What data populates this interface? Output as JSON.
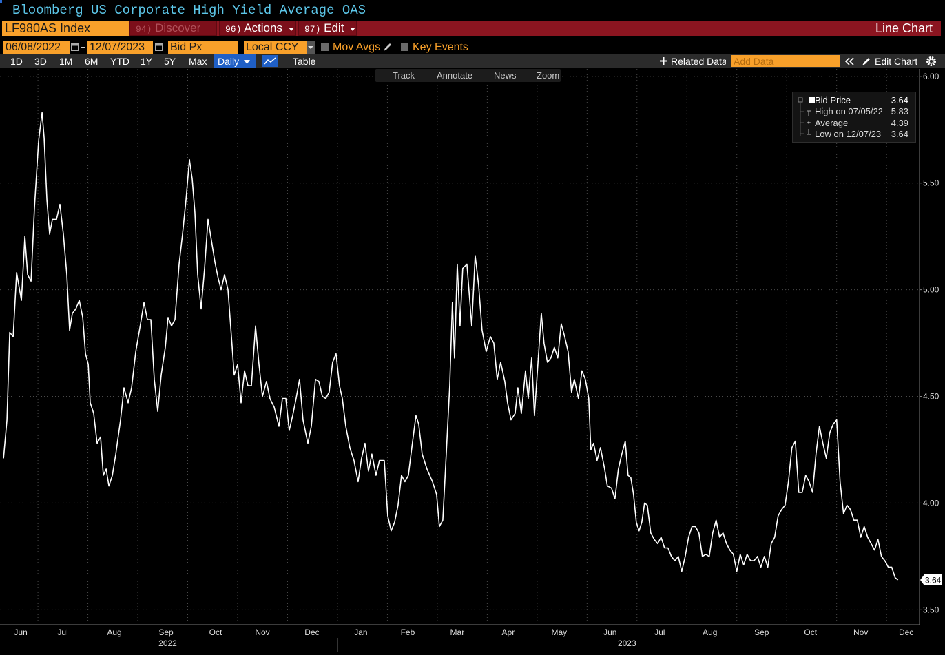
{
  "header": {
    "title": "Bloomberg US Corporate High Yield Average OAS",
    "ticker": "LF980AS Index",
    "menu": [
      {
        "key": "94)",
        "label": "Discover"
      },
      {
        "key": "96)",
        "label": "Actions"
      },
      {
        "key": "97)",
        "label": "Edit"
      }
    ],
    "view": "Line Chart"
  },
  "toolbar": {
    "start_date": "06/08/2022",
    "end_date": "12/07/2023",
    "field": "Bid Px",
    "currency": "Local CCY",
    "options": [
      "Mov Avgs",
      "Key Events"
    ],
    "ranges": [
      "1D",
      "3D",
      "1M",
      "6M",
      "YTD",
      "1Y",
      "5Y",
      "Max"
    ],
    "frequency": "Daily",
    "table": "Table",
    "related": "Related Data",
    "add_data": "Add Data",
    "edit_chart": "Edit Chart",
    "tools": [
      "Track",
      "Annotate",
      "News",
      "Zoom"
    ]
  },
  "chart_data": {
    "type": "line",
    "x": [
      0.31,
      0.379,
      0.434,
      0.503,
      0.572,
      0.669,
      0.738,
      0.793,
      0.862,
      0.931,
      1.014,
      1.083,
      1.124,
      1.179,
      1.234,
      1.29,
      1.372,
      1.441,
      1.51,
      1.579,
      1.634,
      1.69,
      1.759,
      1.828,
      1.897,
      1.952,
      2.007,
      2.048,
      2.117,
      2.186,
      2.255,
      2.31,
      2.366,
      2.421,
      2.49,
      2.559,
      2.655,
      2.724,
      2.807,
      2.876,
      2.959,
      3.055,
      3.124,
      3.193,
      3.262,
      3.331,
      3.4,
      3.469,
      3.552,
      3.607,
      3.676,
      3.745,
      3.828,
      3.897,
      3.966,
      4.034,
      4.09,
      4.145,
      4.2,
      4.269,
      4.338,
      4.407,
      4.476,
      4.545,
      4.614,
      4.669,
      4.738,
      4.807,
      4.876,
      4.931,
      5.0,
      5.069,
      5.138,
      5.207,
      5.276,
      5.359,
      5.428,
      5.497,
      5.579,
      5.648,
      5.731,
      5.828,
      5.897,
      5.966,
      6.034,
      6.103,
      6.172,
      6.241,
      6.31,
      6.407,
      6.476,
      6.559,
      6.628,
      6.697,
      6.766,
      6.834,
      6.903,
      6.972,
      7.041,
      7.097,
      7.166,
      7.248,
      7.331,
      7.414,
      7.483,
      7.552,
      7.621,
      7.69,
      7.772,
      7.841,
      7.938,
      8.007,
      8.076,
      8.145,
      8.214,
      8.283,
      8.352,
      8.421,
      8.49,
      8.572,
      8.628,
      8.697,
      8.793,
      8.903,
      8.986,
      9.041,
      9.11,
      9.179,
      9.248,
      9.303,
      9.345,
      9.4,
      9.455,
      9.51,
      9.593,
      9.69,
      9.759,
      9.828,
      9.897,
      9.979,
      10.062,
      10.131,
      10.2,
      10.269,
      10.352,
      10.407,
      10.476,
      10.559,
      10.614,
      10.683,
      10.766,
      10.821,
      10.89,
      10.945,
      11.014,
      11.083,
      11.138,
      11.207,
      11.276,
      11.345,
      11.414,
      11.483,
      11.552,
      11.621,
      11.69,
      11.745,
      11.828,
      11.897,
      11.966,
      12.034,
      12.076,
      12.131,
      12.2,
      12.269,
      12.352,
      12.407,
      12.49,
      12.559,
      12.628,
      12.697,
      12.766,
      12.821,
      12.876,
      12.931,
      12.986,
      13.041,
      13.097,
      13.152,
      13.207,
      13.276,
      13.345,
      13.414,
      13.483,
      13.552,
      13.621,
      13.69,
      13.759,
      13.828,
      13.897,
      13.966,
      14.034,
      14.103,
      14.172,
      14.241,
      14.31,
      14.379,
      14.448,
      14.517,
      14.586,
      14.655,
      14.724,
      14.793,
      14.862,
      14.931,
      15.0,
      15.069,
      15.138,
      15.207,
      15.276,
      15.345,
      15.414,
      15.483,
      15.552,
      15.621,
      15.69,
      15.759,
      15.828,
      15.897,
      15.966,
      16.034,
      16.103,
      16.172,
      16.241,
      16.31,
      16.379,
      16.448,
      16.517,
      16.586,
      16.655,
      16.724,
      16.793,
      16.862,
      16.931,
      17.0,
      17.069,
      17.138,
      17.207,
      17.276,
      17.345,
      17.414,
      17.483,
      17.552,
      17.621,
      17.69,
      17.759,
      17.828,
      17.897,
      17.966,
      18.034,
      18.103,
      18.172,
      18.228
    ],
    "series": [
      {
        "name": "Bid Price",
        "color": "#ffffff",
        "values": [
          4.21,
          4.39,
          4.8,
          4.78,
          5.08,
          4.95,
          5.25,
          5.07,
          5.04,
          5.39,
          5.7,
          5.83,
          5.71,
          5.42,
          5.26,
          5.33,
          5.33,
          5.4,
          5.26,
          5.07,
          4.81,
          4.89,
          4.91,
          4.95,
          4.87,
          4.7,
          4.65,
          4.47,
          4.42,
          4.28,
          4.31,
          4.13,
          4.16,
          4.08,
          4.13,
          4.23,
          4.39,
          4.54,
          4.47,
          4.54,
          4.71,
          4.84,
          4.94,
          4.86,
          4.86,
          4.58,
          4.43,
          4.6,
          4.73,
          4.87,
          4.83,
          4.86,
          5.12,
          5.26,
          5.42,
          5.61,
          5.52,
          5.36,
          5.07,
          4.91,
          5.1,
          5.33,
          5.23,
          5.13,
          5.05,
          5.0,
          5.07,
          5.0,
          4.78,
          4.6,
          4.65,
          4.47,
          4.62,
          4.55,
          4.55,
          4.83,
          4.65,
          4.5,
          4.57,
          4.49,
          4.45,
          4.36,
          4.49,
          4.49,
          4.34,
          4.41,
          4.49,
          4.58,
          4.39,
          4.28,
          4.36,
          4.58,
          4.57,
          4.5,
          4.49,
          4.52,
          4.66,
          4.7,
          4.55,
          4.49,
          4.36,
          4.26,
          4.2,
          4.1,
          4.21,
          4.28,
          4.15,
          4.23,
          4.13,
          4.2,
          4.2,
          3.94,
          3.87,
          3.91,
          3.99,
          4.13,
          4.1,
          4.13,
          4.26,
          4.41,
          4.37,
          4.23,
          4.16,
          4.1,
          4.04,
          3.89,
          3.92,
          4.23,
          4.55,
          4.94,
          4.68,
          5.12,
          4.83,
          5.1,
          5.12,
          4.83,
          5.16,
          5.02,
          4.81,
          4.71,
          4.78,
          4.75,
          4.58,
          4.66,
          4.57,
          4.47,
          4.39,
          4.42,
          4.54,
          4.42,
          4.62,
          4.49,
          4.68,
          4.41,
          4.65,
          4.89,
          4.75,
          4.66,
          4.68,
          4.73,
          4.68,
          4.84,
          4.78,
          4.71,
          4.52,
          4.58,
          4.49,
          4.62,
          4.58,
          4.49,
          4.25,
          4.28,
          4.2,
          4.26,
          4.16,
          4.08,
          4.07,
          4.02,
          4.16,
          4.23,
          4.29,
          4.13,
          4.12,
          4.04,
          3.91,
          3.87,
          3.91,
          4.0,
          3.99,
          3.86,
          3.83,
          3.81,
          3.84,
          3.79,
          3.79,
          3.75,
          3.73,
          3.75,
          3.68,
          3.75,
          3.84,
          3.89,
          3.89,
          3.86,
          3.75,
          3.76,
          3.75,
          3.86,
          3.92,
          3.84,
          3.86,
          3.81,
          3.78,
          3.76,
          3.68,
          3.76,
          3.71,
          3.76,
          3.73,
          3.73,
          3.75,
          3.7,
          3.75,
          3.7,
          3.81,
          3.84,
          3.94,
          3.97,
          3.99,
          4.1,
          4.26,
          4.29,
          4.05,
          4.05,
          4.13,
          4.1,
          4.05,
          4.23,
          4.36,
          4.28,
          4.21,
          4.33,
          4.37,
          4.39,
          4.1,
          3.95,
          3.99,
          3.97,
          3.92,
          3.92,
          3.84,
          3.89,
          3.84,
          3.81,
          3.78,
          3.83,
          3.75,
          3.73,
          3.7,
          3.7,
          3.65,
          3.64
        ]
      }
    ],
    "stats": [
      {
        "label": "High on 07/05/22",
        "value": 5.83
      },
      {
        "label": "Average",
        "value": 4.39
      },
      {
        "label": "Low on 12/07/23",
        "value": 3.64
      }
    ],
    "xlim": [
      0.24,
      18.66
    ],
    "xticks": [
      {
        "value": 0.655,
        "label": "Jun"
      },
      {
        "value": 1.497,
        "label": "Jul"
      },
      {
        "value": 2.531,
        "label": "Aug"
      },
      {
        "value": 3.566,
        "label": "Sep"
      },
      {
        "value": 4.559,
        "label": "Oct"
      },
      {
        "value": 5.497,
        "label": "Nov"
      },
      {
        "value": 6.49,
        "label": "Dec"
      },
      {
        "value": 7.469,
        "label": "Jan"
      },
      {
        "value": 8.407,
        "label": "Feb"
      },
      {
        "value": 9.4,
        "label": "Mar"
      },
      {
        "value": 10.421,
        "label": "Apr"
      },
      {
        "value": 11.441,
        "label": "May"
      },
      {
        "value": 12.462,
        "label": "Jun"
      },
      {
        "value": 13.455,
        "label": "Jul"
      },
      {
        "value": 14.462,
        "label": "Aug"
      },
      {
        "value": 15.497,
        "label": "Sep"
      },
      {
        "value": 16.476,
        "label": "Oct"
      },
      {
        "value": 17.483,
        "label": "Nov"
      },
      {
        "value": 18.393,
        "label": "Dec"
      }
    ],
    "xgrid": [
      1,
      2,
      3,
      4,
      5,
      6,
      7,
      8,
      9,
      10,
      11,
      12,
      13,
      14,
      15,
      16,
      17,
      18
    ],
    "xgroups": [
      {
        "value": 3.6,
        "label": "2022"
      },
      {
        "value": 12.8,
        "label": "2023"
      }
    ],
    "xgroup_break": 7,
    "ylim": [
      3.43,
      6.035
    ],
    "yticks": [
      {
        "value": 3.5,
        "label": "3.50"
      },
      {
        "value": 4,
        "label": "4.00"
      },
      {
        "value": 4.5,
        "label": "4.50"
      },
      {
        "value": 5,
        "label": "5.00"
      },
      {
        "value": 5.5,
        "label": "5.50"
      },
      {
        "value": 6,
        "label": "6.00"
      }
    ],
    "grid": true,
    "legend": "upper right"
  }
}
